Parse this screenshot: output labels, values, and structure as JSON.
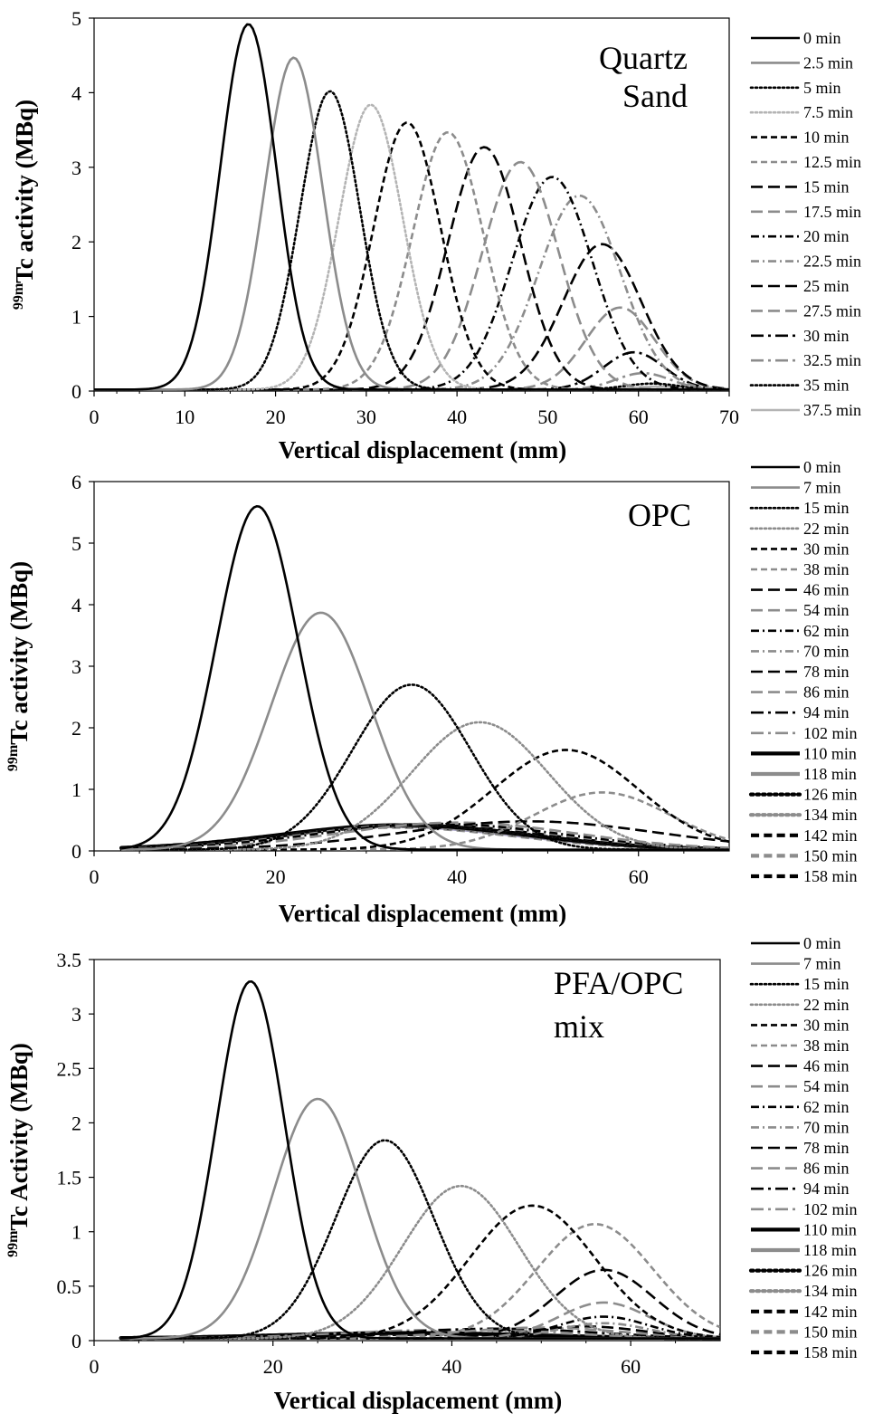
{
  "figure": {
    "panel_labels": [
      "Quartz Sand",
      "OPC",
      "PFA/OPC mix"
    ]
  },
  "styles": {
    "colors": {
      "black": "#000000",
      "gray": "#8c8c8c",
      "lightgray": "#b4b4b4",
      "lavender": "#a8a2c8"
    }
  },
  "chart_data": [
    {
      "type": "line",
      "panel_label_lines": [
        "Quartz",
        "Sand"
      ],
      "xlabel": "Vertical displacement (mm)",
      "ylabel_sup": "99m",
      "ylabel_main": "Tc activity (MBq)",
      "xlim": [
        0,
        70
      ],
      "ylim": [
        0,
        5
      ],
      "xticks": [
        0,
        10,
        20,
        30,
        40,
        50,
        60,
        70
      ],
      "yticks": [
        0,
        1,
        2,
        3,
        4,
        5
      ],
      "x_start": 0,
      "x_end": 70,
      "series": [
        {
          "name": "0 min",
          "peak_x": 17,
          "peak_y": 4.9,
          "width": 3.1,
          "style": "solid",
          "color": "black",
          "weight": "normal"
        },
        {
          "name": "2.5 min",
          "peak_x": 22,
          "peak_y": 4.45,
          "width": 3.2,
          "style": "solid",
          "color": "gray",
          "weight": "normal"
        },
        {
          "name": "5 min",
          "peak_x": 26,
          "peak_y": 4.0,
          "width": 3.3,
          "style": "dot",
          "color": "black",
          "weight": "normal"
        },
        {
          "name": "7.5 min",
          "peak_x": 30.5,
          "peak_y": 3.82,
          "width": 3.5,
          "style": "dot",
          "color": "lightgray",
          "weight": "normal"
        },
        {
          "name": "10 min",
          "peak_x": 34.5,
          "peak_y": 3.58,
          "width": 3.7,
          "style": "dash",
          "color": "black",
          "weight": "normal"
        },
        {
          "name": "12.5 min",
          "peak_x": 39,
          "peak_y": 3.45,
          "width": 3.9,
          "style": "dash",
          "color": "gray",
          "weight": "normal"
        },
        {
          "name": "15 min",
          "peak_x": 43,
          "peak_y": 3.25,
          "width": 4.0,
          "style": "longdash",
          "color": "black",
          "weight": "normal"
        },
        {
          "name": "17.5 min",
          "peak_x": 47,
          "peak_y": 3.05,
          "width": 4.2,
          "style": "longdash",
          "color": "gray",
          "weight": "normal"
        },
        {
          "name": "20 min",
          "peak_x": 50.5,
          "peak_y": 2.85,
          "width": 4.4,
          "style": "dashdot",
          "color": "black",
          "weight": "normal"
        },
        {
          "name": "22.5 min",
          "peak_x": 53.5,
          "peak_y": 2.6,
          "width": 4.5,
          "style": "dashdot",
          "color": "gray",
          "weight": "normal"
        },
        {
          "name": "25 min",
          "peak_x": 56,
          "peak_y": 1.95,
          "width": 4.3,
          "style": "longdash",
          "color": "black",
          "weight": "normal"
        },
        {
          "name": "27.5 min",
          "peak_x": 58,
          "peak_y": 1.1,
          "width": 3.8,
          "style": "longdash",
          "color": "gray",
          "weight": "normal"
        },
        {
          "name": "30 min",
          "peak_x": 59.5,
          "peak_y": 0.5,
          "width": 3.3,
          "style": "longdashdot",
          "color": "black",
          "weight": "normal"
        },
        {
          "name": "32.5 min",
          "peak_x": 60.5,
          "peak_y": 0.22,
          "width": 3.0,
          "style": "longdashdot",
          "color": "gray",
          "weight": "normal"
        },
        {
          "name": "35 min",
          "peak_x": 61.5,
          "peak_y": 0.08,
          "width": 3.0,
          "style": "dot",
          "color": "black",
          "weight": "normal"
        },
        {
          "name": "37.5 min",
          "peak_x": 62.5,
          "peak_y": 0.04,
          "width": 3.0,
          "style": "solid",
          "color": "lightgray",
          "weight": "normal"
        }
      ]
    },
    {
      "type": "line",
      "panel_label_lines": [
        "OPC"
      ],
      "xlabel": "Vertical displacement (mm)",
      "ylabel_sup": "99m",
      "ylabel_main": "Tc activity (MBq)",
      "xlim": [
        0,
        70
      ],
      "ylim": [
        0,
        6
      ],
      "xticks": [
        0,
        20,
        40,
        60
      ],
      "yticks": [
        0,
        1,
        2,
        3,
        4,
        5,
        6
      ],
      "x_start": 3,
      "x_end": 70,
      "series": [
        {
          "name": "0 min",
          "peak_x": 18,
          "peak_y": 5.58,
          "width": 4.5,
          "style": "solid",
          "color": "black",
          "weight": "normal"
        },
        {
          "name": "7 min",
          "peak_x": 25,
          "peak_y": 3.85,
          "width": 5.5,
          "style": "solid",
          "color": "gray",
          "weight": "normal"
        },
        {
          "name": "15 min",
          "peak_x": 35,
          "peak_y": 2.68,
          "width": 6.5,
          "style": "dot",
          "color": "black",
          "weight": "normal"
        },
        {
          "name": "22 min",
          "peak_x": 42.5,
          "peak_y": 2.07,
          "width": 7.5,
          "style": "dot",
          "color": "gray",
          "weight": "normal"
        },
        {
          "name": "30 min",
          "peak_x": 52,
          "peak_y": 1.62,
          "width": 8.0,
          "style": "dash",
          "color": "black",
          "weight": "normal"
        },
        {
          "name": "38 min",
          "peak_x": 56,
          "peak_y": 0.93,
          "width": 7.5,
          "style": "dash",
          "color": "gray",
          "weight": "normal"
        },
        {
          "name": "46 min",
          "peak_x": 48,
          "peak_y": 0.46,
          "width": 14.0,
          "style": "longdash",
          "color": "black",
          "weight": "normal"
        },
        {
          "name": "54 min",
          "peak_x": 40,
          "peak_y": 0.44,
          "width": 13.0,
          "style": "longdash",
          "color": "gray",
          "weight": "normal"
        },
        {
          "name": "62 min",
          "peak_x": 38,
          "peak_y": 0.42,
          "width": 13.5,
          "style": "dashdot",
          "color": "black",
          "weight": "normal"
        },
        {
          "name": "70 min",
          "peak_x": 37,
          "peak_y": 0.42,
          "width": 13.5,
          "style": "dashdot",
          "color": "gray",
          "weight": "normal"
        },
        {
          "name": "78 min",
          "peak_x": 36,
          "peak_y": 0.41,
          "width": 13.5,
          "style": "longdash",
          "color": "black",
          "weight": "normal"
        },
        {
          "name": "86 min",
          "peak_x": 36,
          "peak_y": 0.41,
          "width": 13.5,
          "style": "longdash",
          "color": "gray",
          "weight": "normal"
        },
        {
          "name": "94 min",
          "peak_x": 35,
          "peak_y": 0.4,
          "width": 13.5,
          "style": "longdashdot",
          "color": "black",
          "weight": "normal"
        },
        {
          "name": "102 min",
          "peak_x": 35,
          "peak_y": 0.4,
          "width": 13.5,
          "style": "longdashdot",
          "color": "gray",
          "weight": "normal"
        },
        {
          "name": "110 min",
          "peak_x": 34,
          "peak_y": 0.4,
          "width": 13.5,
          "style": "solid",
          "color": "black",
          "weight": "bold"
        },
        {
          "name": "118 min",
          "peak_x": 34,
          "peak_y": 0.39,
          "width": 13.5,
          "style": "solid",
          "color": "gray",
          "weight": "bold"
        },
        {
          "name": "126 min",
          "peak_x": 34,
          "peak_y": 0.39,
          "width": 13.5,
          "style": "dot",
          "color": "black",
          "weight": "bold"
        },
        {
          "name": "134 min",
          "peak_x": 34,
          "peak_y": 0.38,
          "width": 13.5,
          "style": "dot",
          "color": "gray",
          "weight": "bold"
        },
        {
          "name": "142 min",
          "peak_x": 34,
          "peak_y": 0.38,
          "width": 13.5,
          "style": "dash",
          "color": "black",
          "weight": "bold"
        },
        {
          "name": "150 min",
          "peak_x": 33,
          "peak_y": 0.37,
          "width": 13.5,
          "style": "dash",
          "color": "gray",
          "weight": "bold"
        },
        {
          "name": "158 min",
          "peak_x": 33,
          "peak_y": 0.37,
          "width": 13.5,
          "style": "solid",
          "color": "lavender",
          "weight": "normal"
        }
      ],
      "legend_marker_overrides": {
        "158 min": {
          "style": "dash",
          "color": "black",
          "weight": "bold"
        }
      }
    },
    {
      "type": "line",
      "panel_label_lines": [
        "PFA/OPC",
        "mix"
      ],
      "xlabel": "Vertical displacement (mm)",
      "ylabel_sup": "99m",
      "ylabel_main": "Tc Activity (MBq)",
      "xlim": [
        0,
        70
      ],
      "ylim": [
        0,
        3.5
      ],
      "xticks": [
        0,
        20,
        40,
        60
      ],
      "yticks": [
        0,
        0.5,
        1,
        1.5,
        2,
        2.5,
        3,
        3.5
      ],
      "x_start": 3,
      "x_end": 70,
      "series": [
        {
          "name": "0 min",
          "peak_x": 17.5,
          "peak_y": 3.28,
          "width": 3.8,
          "style": "solid",
          "color": "black",
          "weight": "normal"
        },
        {
          "name": "7 min",
          "peak_x": 25,
          "peak_y": 2.2,
          "width": 5.0,
          "style": "solid",
          "color": "gray",
          "weight": "normal"
        },
        {
          "name": "15 min",
          "peak_x": 32.5,
          "peak_y": 1.82,
          "width": 5.5,
          "style": "dot",
          "color": "black",
          "weight": "normal"
        },
        {
          "name": "22 min",
          "peak_x": 41,
          "peak_y": 1.4,
          "width": 6.5,
          "style": "dot",
          "color": "gray",
          "weight": "normal"
        },
        {
          "name": "30 min",
          "peak_x": 49,
          "peak_y": 1.22,
          "width": 7.0,
          "style": "dash",
          "color": "black",
          "weight": "normal"
        },
        {
          "name": "38 min",
          "peak_x": 56,
          "peak_y": 1.05,
          "width": 6.5,
          "style": "dash",
          "color": "gray",
          "weight": "normal"
        },
        {
          "name": "46 min",
          "peak_x": 57,
          "peak_y": 0.63,
          "width": 5.5,
          "style": "longdash",
          "color": "black",
          "weight": "normal"
        },
        {
          "name": "54 min",
          "peak_x": 57,
          "peak_y": 0.33,
          "width": 5.0,
          "style": "longdash",
          "color": "gray",
          "weight": "normal"
        },
        {
          "name": "62 min",
          "peak_x": 57,
          "peak_y": 0.2,
          "width": 5.0,
          "style": "dashdot",
          "color": "black",
          "weight": "normal"
        },
        {
          "name": "70 min",
          "peak_x": 57,
          "peak_y": 0.14,
          "width": 5.0,
          "style": "dashdot",
          "color": "gray",
          "weight": "normal"
        },
        {
          "name": "78 min",
          "peak_x": 55,
          "peak_y": 0.11,
          "width": 6.5,
          "style": "longdash",
          "color": "black",
          "weight": "normal"
        },
        {
          "name": "86 min",
          "peak_x": 50,
          "peak_y": 0.1,
          "width": 9.0,
          "style": "longdash",
          "color": "gray",
          "weight": "normal"
        },
        {
          "name": "94 min",
          "peak_x": 45,
          "peak_y": 0.09,
          "width": 11.0,
          "style": "longdashdot",
          "color": "black",
          "weight": "normal"
        },
        {
          "name": "102 min",
          "peak_x": 40,
          "peak_y": 0.08,
          "width": 12.0,
          "style": "longdashdot",
          "color": "gray",
          "weight": "normal"
        },
        {
          "name": "110 min",
          "peak_x": 35,
          "peak_y": 0.05,
          "width": 14.0,
          "style": "solid",
          "color": "black",
          "weight": "bold"
        },
        {
          "name": "118 min",
          "peak_x": 35,
          "peak_y": 0.05,
          "width": 14.0,
          "style": "solid",
          "color": "gray",
          "weight": "bold"
        },
        {
          "name": "126 min",
          "peak_x": 35,
          "peak_y": 0.05,
          "width": 14.0,
          "style": "dot",
          "color": "black",
          "weight": "bold"
        },
        {
          "name": "134 min",
          "peak_x": 35,
          "peak_y": 0.05,
          "width": 14.0,
          "style": "dot",
          "color": "gray",
          "weight": "bold"
        },
        {
          "name": "142 min",
          "peak_x": 35,
          "peak_y": 0.04,
          "width": 14.0,
          "style": "dash",
          "color": "black",
          "weight": "bold"
        },
        {
          "name": "150 min",
          "peak_x": 35,
          "peak_y": 0.04,
          "width": 14.0,
          "style": "dash",
          "color": "gray",
          "weight": "bold"
        },
        {
          "name": "158 min",
          "peak_x": 35,
          "peak_y": 0.04,
          "width": 14.0,
          "style": "dash",
          "color": "black",
          "weight": "bold"
        }
      ]
    }
  ]
}
